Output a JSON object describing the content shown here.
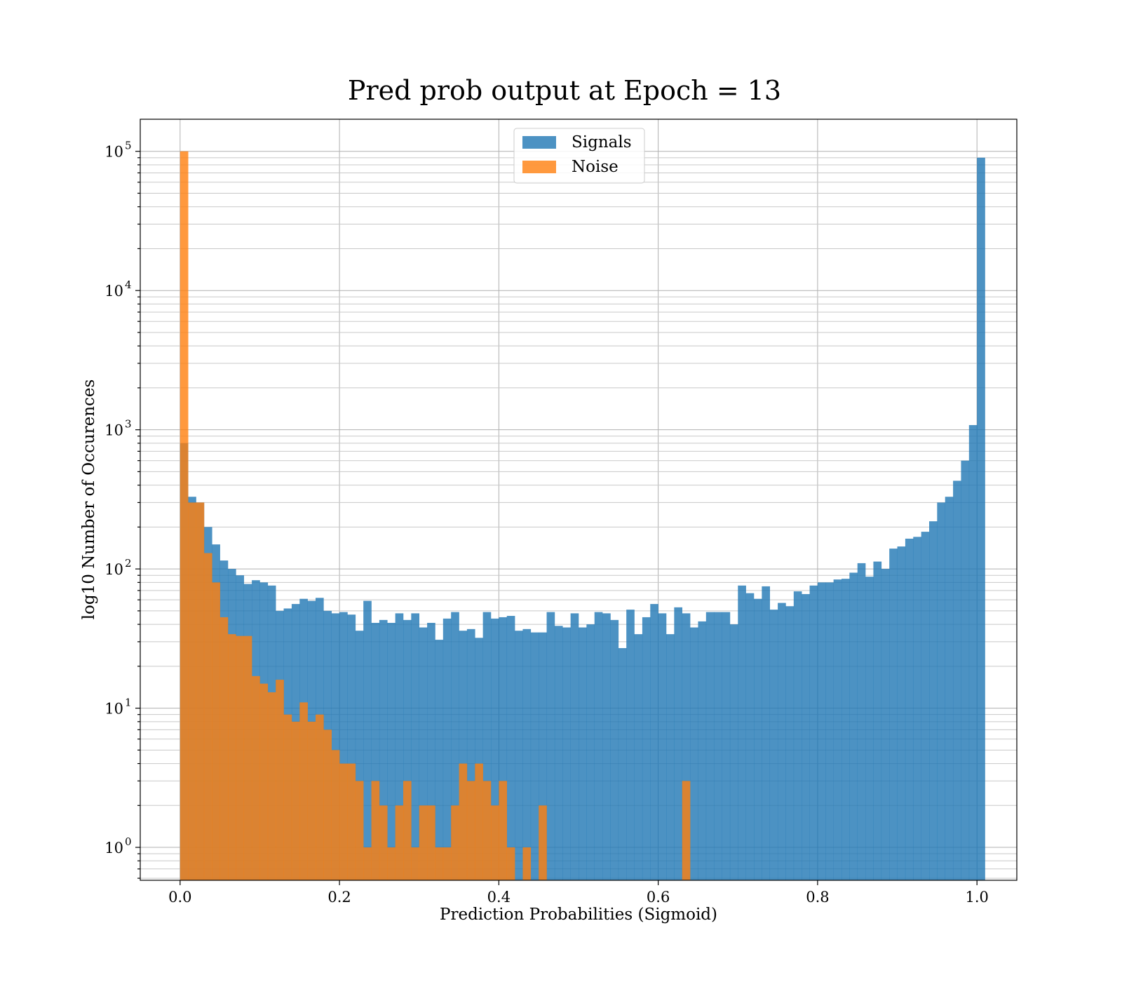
{
  "chart_data": {
    "type": "bar",
    "title": "Pred prob output at Epoch = 13",
    "xlabel": "Prediction Probabilities (Sigmoid)",
    "ylabel": "log10 Number of Occurences",
    "xlim": [
      -0.05,
      1.05
    ],
    "ylim": [
      0.58,
      170000
    ],
    "yscale": "log",
    "grid": true,
    "legend": "upper-center",
    "x_ticks": [
      0.0,
      0.2,
      0.4,
      0.6,
      0.8,
      1.0
    ],
    "x_tick_labels": [
      "0.0",
      "0.2",
      "0.4",
      "0.6",
      "0.8",
      "1.0"
    ],
    "y_ticks": [
      1,
      10,
      100,
      1000,
      10000,
      100000
    ],
    "y_tick_base": "10",
    "y_tick_exponents": [
      "0",
      "1",
      "2",
      "3",
      "4",
      "5"
    ],
    "bin_width": 0.01,
    "bin_start": 0.0,
    "series": [
      {
        "name": "Signals",
        "color": "#1f77b4",
        "alpha": 0.8,
        "values": [
          800,
          330,
          300,
          200,
          150,
          115,
          100,
          90,
          78,
          83,
          80,
          76,
          50,
          52,
          56,
          61,
          59,
          62,
          50,
          48,
          49,
          47,
          36,
          59,
          41,
          43,
          41,
          48,
          43,
          48,
          38,
          41,
          31,
          44,
          49,
          36,
          37,
          32,
          49,
          44,
          45,
          46,
          36,
          37,
          35,
          35,
          49,
          39,
          38,
          48,
          38,
          40,
          49,
          48,
          43,
          27,
          51,
          34,
          45,
          56,
          48,
          34,
          53,
          48,
          38,
          42,
          49,
          49,
          49,
          40,
          76,
          67,
          61,
          75,
          51,
          57,
          54,
          69,
          66,
          76,
          80,
          80,
          84,
          85,
          94,
          110,
          88,
          113,
          100,
          140,
          145,
          165,
          170,
          185,
          220,
          300,
          330,
          430,
          600,
          1080,
          90000
        ]
      },
      {
        "name": "Noise",
        "color": "#ff7f0e",
        "alpha": 0.8,
        "values": [
          100000,
          300,
          300,
          130,
          80,
          45,
          34,
          33,
          33,
          17,
          15,
          13,
          16,
          9,
          8,
          11,
          8,
          9,
          7,
          5,
          4,
          4,
          3,
          1,
          3,
          2,
          1,
          2,
          3,
          1,
          2,
          2,
          1,
          1,
          2,
          4,
          3,
          4,
          3,
          2,
          3,
          1,
          0,
          1,
          0,
          2,
          0,
          0,
          0,
          0,
          0,
          0,
          0,
          0,
          0,
          0,
          0,
          0,
          0,
          0,
          0,
          0,
          0,
          3,
          0,
          0,
          0,
          0,
          0,
          0,
          0,
          0,
          0,
          0,
          0,
          0,
          0,
          0,
          0,
          0,
          0,
          0,
          0,
          0,
          0,
          0,
          0,
          0,
          0,
          0,
          0,
          0,
          0,
          0,
          0,
          0,
          0,
          0,
          0,
          0,
          0
        ]
      }
    ]
  }
}
